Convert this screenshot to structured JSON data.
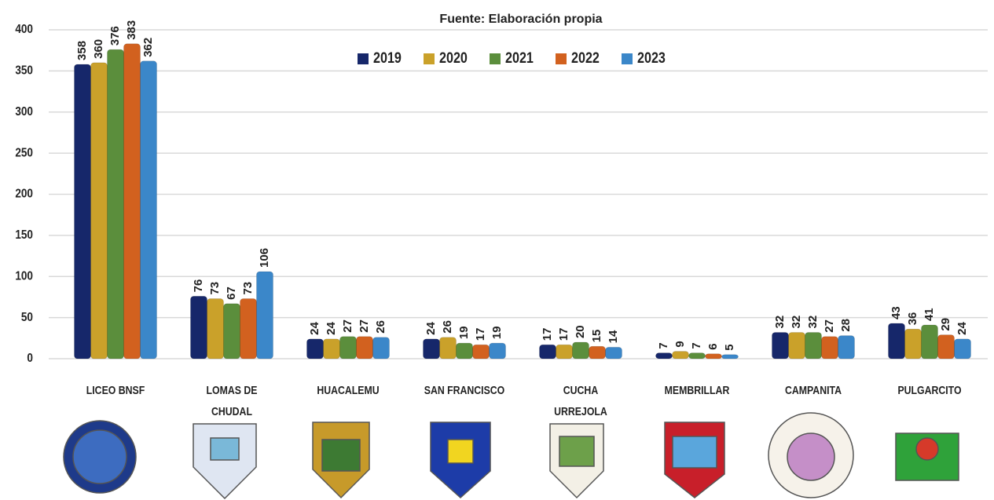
{
  "chart_data": {
    "type": "bar",
    "title": "Fuente: Elaboración propia",
    "categories": [
      "LICEO BNSF",
      "LOMAS DE CHUDAL",
      "HUACALEMU",
      "SAN FRANCISCO",
      "CUCHA URREJOLA",
      "MEMBRILLAR",
      "CAMPANITA",
      "PULGARCITO"
    ],
    "series": [
      {
        "name": "2019",
        "color": "#16276a",
        "values": [
          358,
          76,
          24,
          24,
          17,
          7,
          32,
          43
        ]
      },
      {
        "name": "2020",
        "color": "#caa12a",
        "values": [
          360,
          73,
          24,
          26,
          17,
          9,
          32,
          36
        ]
      },
      {
        "name": "2021",
        "color": "#5b8e3c",
        "values": [
          376,
          67,
          27,
          19,
          20,
          7,
          32,
          41
        ]
      },
      {
        "name": "2022",
        "color": "#d2611f",
        "values": [
          383,
          73,
          27,
          17,
          15,
          6,
          27,
          29
        ]
      },
      {
        "name": "2023",
        "color": "#3b87c9",
        "values": [
          362,
          106,
          26,
          19,
          14,
          5,
          28,
          24
        ]
      }
    ],
    "ylim": [
      0,
      400
    ],
    "yticks": [
      0,
      50,
      100,
      150,
      200,
      250,
      300,
      350,
      400
    ],
    "grid": true,
    "legend": "top"
  }
}
